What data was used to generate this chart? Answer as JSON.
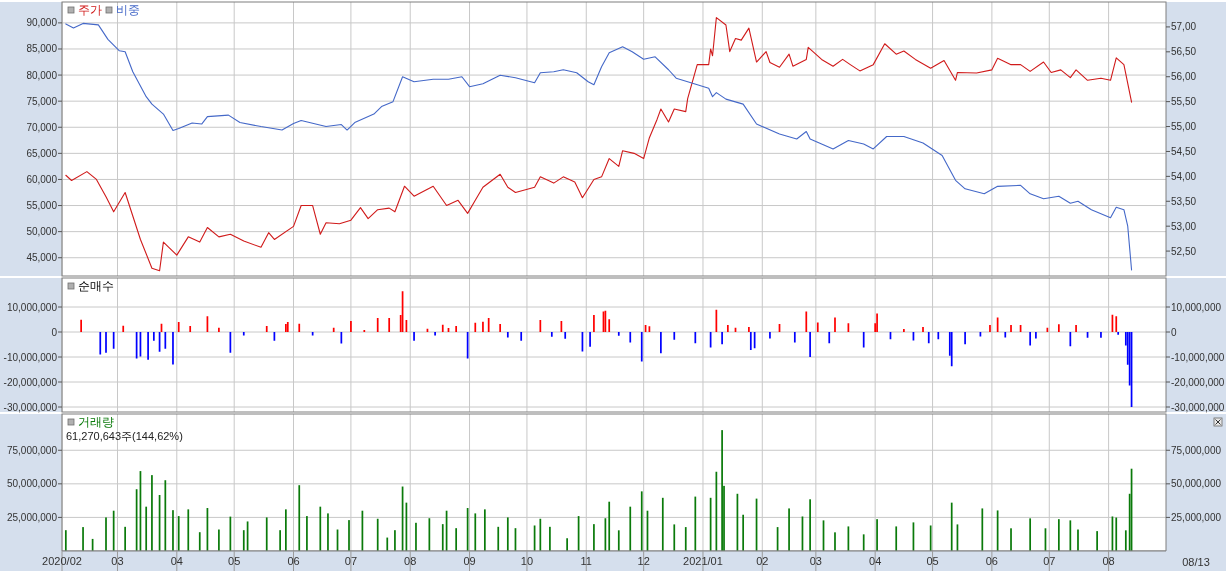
{
  "chart_data": [
    {
      "type": "line",
      "legend": "top left",
      "grid": true,
      "tick_labels": "y",
      "xlim": [
        "2020-02-01",
        "2021-08-31"
      ],
      "xticks": [
        {
          "value": "2020-02-01",
          "label": null
        },
        {
          "value": "2020-03-01",
          "label": null
        },
        {
          "value": "2020-04-01",
          "label": null
        },
        {
          "value": "2020-05-01",
          "label": null
        },
        {
          "value": "2020-06-01",
          "label": null
        },
        {
          "value": "2020-07-01",
          "label": null
        },
        {
          "value": "2020-08-01",
          "label": null
        },
        {
          "value": "2020-09-01",
          "label": null
        },
        {
          "value": "2020-10-01",
          "label": null
        },
        {
          "value": "2020-11-01",
          "label": null
        },
        {
          "value": "2020-12-01",
          "label": null
        },
        {
          "value": "2021-01-01",
          "label": null
        },
        {
          "value": "2021-02-01",
          "label": null
        },
        {
          "value": "2021-03-01",
          "label": null
        },
        {
          "value": "2021-04-01",
          "label": null
        },
        {
          "value": "2021-05-01",
          "label": null
        },
        {
          "value": "2021-06-01",
          "label": null
        },
        {
          "value": "2021-07-01",
          "label": null
        },
        {
          "value": "2021-08-01",
          "label": null
        }
      ],
      "ylim": [
        41500,
        94000
      ],
      "yticks": [
        {
          "value": 45000,
          "label": "45,000"
        },
        {
          "value": 50000,
          "label": "50,000"
        },
        {
          "value": 55000,
          "label": "55,000"
        },
        {
          "value": 60000,
          "label": "60,000"
        },
        {
          "value": 65000,
          "label": "65,000"
        },
        {
          "value": 70000,
          "label": "70,000"
        },
        {
          "value": 75000,
          "label": "75,000"
        },
        {
          "value": 80000,
          "label": "80,000"
        },
        {
          "value": 85000,
          "label": "85,000"
        },
        {
          "value": 90000,
          "label": "90,000"
        }
      ],
      "y2lim": [
        52,
        57.5
      ],
      "y2ticks": [
        {
          "value": 52.5,
          "label": "52,50"
        },
        {
          "value": 53,
          "label": "53,00"
        },
        {
          "value": 53.5,
          "label": "53,50"
        },
        {
          "value": 54,
          "label": "54,00"
        },
        {
          "value": 54.5,
          "label": "54,50"
        },
        {
          "value": 55,
          "label": "55,00"
        },
        {
          "value": 55.5,
          "label": "55,50"
        },
        {
          "value": 56,
          "label": "56,00"
        },
        {
          "value": 56.5,
          "label": "56,50"
        },
        {
          "value": 57,
          "label": "57,00"
        }
      ],
      "series": [
        {
          "name": "주가",
          "color": "#d01a1a",
          "x": [
            "2020-02-03",
            "2020-02-06",
            "2020-02-14",
            "2020-02-19",
            "2020-02-24",
            "2020-02-28",
            "2020-03-05",
            "2020-03-09",
            "2020-03-13",
            "2020-03-19",
            "2020-03-23",
            "2020-03-25",
            "2020-04-01",
            "2020-04-07",
            "2020-04-13",
            "2020-04-17",
            "2020-04-23",
            "2020-04-29",
            "2020-05-06",
            "2020-05-15",
            "2020-05-19",
            "2020-05-22",
            "2020-06-01",
            "2020-06-05",
            "2020-06-11",
            "2020-06-15",
            "2020-06-18",
            "2020-06-25",
            "2020-07-01",
            "2020-07-06",
            "2020-07-10",
            "2020-07-15",
            "2020-07-21",
            "2020-07-24",
            "2020-07-29",
            "2020-08-03",
            "2020-08-13",
            "2020-08-20",
            "2020-08-26",
            "2020-08-31",
            "2020-09-04",
            "2020-09-08",
            "2020-09-17",
            "2020-09-21",
            "2020-09-25",
            "2020-10-05",
            "2020-10-08",
            "2020-10-15",
            "2020-10-20",
            "2020-10-26",
            "2020-10-30",
            "2020-11-05",
            "2020-11-09",
            "2020-11-13",
            "2020-11-18",
            "2020-11-20",
            "2020-11-26",
            "2020-12-01",
            "2020-12-04",
            "2020-12-08",
            "2020-12-10",
            "2020-12-14",
            "2020-12-17",
            "2020-12-23",
            "2020-12-24",
            "2020-12-29",
            "2021-01-04",
            "2021-01-05",
            "2021-01-06",
            "2021-01-08",
            "2021-01-13",
            "2021-01-15",
            "2021-01-18",
            "2021-01-21",
            "2021-01-25",
            "2021-01-29",
            "2021-02-03",
            "2021-02-05",
            "2021-02-10",
            "2021-02-15",
            "2021-02-17",
            "2021-02-24",
            "2021-02-25",
            "2021-03-04",
            "2021-03-10",
            "2021-03-15",
            "2021-03-19",
            "2021-03-24",
            "2021-03-31",
            "2021-04-06",
            "2021-04-12",
            "2021-04-16",
            "2021-04-22",
            "2021-04-30",
            "2021-05-07",
            "2021-05-13",
            "2021-05-14",
            "2021-05-24",
            "2021-06-01",
            "2021-06-04",
            "2021-06-11",
            "2021-06-16",
            "2021-06-21",
            "2021-06-28",
            "2021-07-02",
            "2021-07-07",
            "2021-07-12",
            "2021-07-15",
            "2021-07-21",
            "2021-07-28",
            "2021-08-02",
            "2021-08-05",
            "2021-08-09",
            "2021-08-13"
          ],
          "values": [
            60800,
            59800,
            61500,
            60000,
            56700,
            53800,
            57500,
            53000,
            48500,
            43000,
            42500,
            48000,
            45500,
            49000,
            48000,
            50800,
            49000,
            49500,
            48200,
            47000,
            49800,
            48500,
            51000,
            55000,
            55000,
            49500,
            51700,
            51500,
            52200,
            54600,
            52500,
            54200,
            54500,
            53800,
            58700,
            56800,
            58700,
            55000,
            56000,
            53500,
            56000,
            58500,
            61000,
            58500,
            57500,
            58500,
            60500,
            59300,
            60500,
            59500,
            56500,
            60000,
            60500,
            64000,
            62500,
            65500,
            65000,
            64000,
            68000,
            71500,
            73500,
            71000,
            73500,
            73000,
            75500,
            82000,
            82000,
            85000,
            83700,
            91000,
            89600,
            84500,
            87000,
            86700,
            89000,
            82500,
            84500,
            82400,
            81500,
            84000,
            81700,
            83000,
            85300,
            83000,
            81700,
            83000,
            82000,
            80800,
            82000,
            86000,
            84000,
            84600,
            83000,
            81300,
            82800,
            79000,
            80500,
            80400,
            81000,
            83200,
            82000,
            82000,
            80700,
            82500,
            80500,
            81000,
            79500,
            81000,
            79000,
            79400,
            79000,
            83300,
            82000,
            74800
          ]
        },
        {
          "name": "비중",
          "color": "#4468c8",
          "axis": "y2",
          "x": [
            "2020-02-03",
            "2020-02-07",
            "2020-02-12",
            "2020-02-20",
            "2020-02-25",
            "2020-03-02",
            "2020-03-05",
            "2020-03-09",
            "2020-03-16",
            "2020-03-19",
            "2020-03-25",
            "2020-03-30",
            "2020-04-02",
            "2020-04-09",
            "2020-04-14",
            "2020-04-17",
            "2020-04-28",
            "2020-05-04",
            "2020-05-15",
            "2020-05-26",
            "2020-06-01",
            "2020-06-05",
            "2020-06-18",
            "2020-06-26",
            "2020-06-29",
            "2020-07-03",
            "2020-07-13",
            "2020-07-17",
            "2020-07-23",
            "2020-07-28",
            "2020-08-03",
            "2020-08-13",
            "2020-08-21",
            "2020-08-28",
            "2020-09-01",
            "2020-09-08",
            "2020-09-17",
            "2020-09-25",
            "2020-10-05",
            "2020-10-08",
            "2020-10-15",
            "2020-10-20",
            "2020-10-27",
            "2020-11-02",
            "2020-11-05",
            "2020-11-09",
            "2020-11-13",
            "2020-11-20",
            "2020-11-25",
            "2020-12-01",
            "2020-12-07",
            "2020-12-14",
            "2020-12-18",
            "2020-12-24",
            "2021-01-04",
            "2021-01-06",
            "2021-01-08",
            "2021-01-13",
            "2021-01-22",
            "2021-01-29",
            "2021-02-10",
            "2021-02-19",
            "2021-02-24",
            "2021-02-26",
            "2021-03-10",
            "2021-03-18",
            "2021-03-26",
            "2021-03-31",
            "2021-04-07",
            "2021-04-16",
            "2021-04-26",
            "2021-05-06",
            "2021-05-13",
            "2021-05-18",
            "2021-05-28",
            "2021-06-04",
            "2021-06-16",
            "2021-06-21",
            "2021-06-28",
            "2021-07-06",
            "2021-07-12",
            "2021-07-16",
            "2021-07-23",
            "2021-08-02",
            "2021-08-05",
            "2021-08-09",
            "2021-08-11",
            "2021-08-13"
          ],
          "values": [
            57.06,
            56.98,
            57.07,
            57.04,
            56.75,
            56.52,
            56.5,
            56.1,
            55.6,
            55.45,
            55.25,
            54.92,
            54.96,
            55.07,
            55.05,
            55.2,
            55.23,
            55.08,
            55.0,
            54.93,
            55.06,
            55.12,
            55.0,
            55.04,
            54.93,
            55.08,
            55.25,
            55.4,
            55.5,
            56.0,
            55.9,
            55.95,
            55.95,
            56.0,
            55.8,
            55.86,
            56.03,
            55.98,
            55.88,
            56.08,
            56.1,
            56.14,
            56.08,
            55.9,
            55.84,
            56.2,
            56.48,
            56.6,
            56.5,
            56.35,
            56.4,
            56.14,
            55.97,
            55.9,
            55.77,
            55.6,
            55.68,
            55.55,
            55.45,
            55.05,
            54.85,
            54.75,
            54.9,
            54.75,
            54.55,
            54.72,
            54.65,
            54.55,
            54.8,
            54.8,
            54.67,
            54.42,
            53.92,
            53.75,
            53.65,
            53.8,
            53.82,
            53.65,
            53.55,
            53.6,
            53.46,
            53.5,
            53.33,
            53.17,
            53.38,
            53.33,
            53.0,
            52.12
          ]
        }
      ]
    },
    {
      "type": "bar",
      "legend": "top left",
      "grid": true,
      "tick_labels": "y",
      "xlim": [
        "2020-02-01",
        "2021-08-31"
      ],
      "xticks": [
        {
          "value": "2020-02-01",
          "label": null
        },
        {
          "value": "2020-03-01",
          "label": null
        },
        {
          "value": "2020-04-01",
          "label": null
        },
        {
          "value": "2020-05-01",
          "label": null
        },
        {
          "value": "2020-06-01",
          "label": null
        },
        {
          "value": "2020-07-01",
          "label": null
        },
        {
          "value": "2020-08-01",
          "label": null
        },
        {
          "value": "2020-09-01",
          "label": null
        },
        {
          "value": "2020-10-01",
          "label": null
        },
        {
          "value": "2020-11-01",
          "label": null
        },
        {
          "value": "2020-12-01",
          "label": null
        },
        {
          "value": "2021-01-01",
          "label": null
        },
        {
          "value": "2021-02-01",
          "label": null
        },
        {
          "value": "2021-03-01",
          "label": null
        },
        {
          "value": "2021-04-01",
          "label": null
        },
        {
          "value": "2021-05-01",
          "label": null
        },
        {
          "value": "2021-06-01",
          "label": null
        },
        {
          "value": "2021-07-01",
          "label": null
        },
        {
          "value": "2021-08-01",
          "label": null
        }
      ],
      "ylim": [
        -32000000,
        21600000
      ],
      "yticks": [
        {
          "value": -30000000,
          "label": "-30,000,000"
        },
        {
          "value": -20000000,
          "label": "-20,000,000"
        },
        {
          "value": -10000000,
          "label": "-10,000,000"
        },
        0,
        {
          "value": 10000000,
          "label": "10,000,000"
        }
      ],
      "y2lim": [
        -32000000,
        21600000
      ],
      "y2ticks": [
        {
          "value": -30000000,
          "label": "-30,000,000"
        },
        {
          "value": -20000000,
          "label": "-20,000,000"
        },
        {
          "value": -10000000,
          "label": "-10,000,000"
        },
        0,
        {
          "value": 10000000,
          "label": "10,000,000"
        }
      ],
      "series": [
        {
          "name": "순매수",
          "x": [
            "2020-02-11",
            "2020-02-21",
            "2020-02-24",
            "2020-02-28",
            "2020-03-04",
            "2020-03-11",
            "2020-03-13",
            "2020-03-17",
            "2020-03-20",
            "2020-03-23",
            "2020-03-24",
            "2020-03-26",
            "2020-03-30",
            "2020-04-02",
            "2020-04-08",
            "2020-04-17",
            "2020-04-23",
            "2020-04-29",
            "2020-05-06",
            "2020-05-18",
            "2020-05-22",
            "2020-05-28",
            "2020-05-29",
            "2020-06-04",
            "2020-06-11",
            "2020-06-22",
            "2020-06-26",
            "2020-07-01",
            "2020-07-08",
            "2020-07-15",
            "2020-07-21",
            "2020-07-27",
            "2020-07-28",
            "2020-07-30",
            "2020-08-03",
            "2020-08-10",
            "2020-08-14",
            "2020-08-18",
            "2020-08-21",
            "2020-08-25",
            "2020-08-31",
            "2020-09-04",
            "2020-09-08",
            "2020-09-11",
            "2020-09-17",
            "2020-09-21",
            "2020-09-28",
            "2020-10-08",
            "2020-10-14",
            "2020-10-19",
            "2020-10-21",
            "2020-10-30",
            "2020-11-03",
            "2020-11-05",
            "2020-11-10",
            "2020-11-11",
            "2020-11-13",
            "2020-11-18",
            "2020-11-24",
            "2020-11-30",
            "2020-12-02",
            "2020-12-04",
            "2020-12-10",
            "2020-12-17",
            "2020-12-28",
            "2021-01-05",
            "2021-01-08",
            "2021-01-11",
            "2021-01-14",
            "2021-01-18",
            "2021-01-25",
            "2021-01-26",
            "2021-01-28",
            "2021-02-05",
            "2021-02-10",
            "2021-02-18",
            "2021-02-24",
            "2021-02-26",
            "2021-03-02",
            "2021-03-08",
            "2021-03-11",
            "2021-03-18",
            "2021-03-26",
            "2021-04-01",
            "2021-04-02",
            "2021-04-09",
            "2021-04-16",
            "2021-04-21",
            "2021-04-26",
            "2021-04-29",
            "2021-05-04",
            "2021-05-10",
            "2021-05-11",
            "2021-05-18",
            "2021-05-26",
            "2021-05-31",
            "2021-06-04",
            "2021-06-08",
            "2021-06-11",
            "2021-06-16",
            "2021-06-21",
            "2021-06-24",
            "2021-06-30",
            "2021-07-06",
            "2021-07-12",
            "2021-07-15",
            "2021-07-21",
            "2021-07-28",
            "2021-08-03",
            "2021-08-05",
            "2021-08-06",
            "2021-08-10",
            "2021-08-11",
            "2021-08-12",
            "2021-08-13"
          ],
          "values": [
            4900000,
            -9000000,
            -8300000,
            -6700000,
            2500000,
            -10600000,
            -9800000,
            -11100000,
            -3500000,
            -7900000,
            3300000,
            -6700000,
            -13000000,
            4000000,
            2400000,
            6300000,
            1700000,
            -8300000,
            -1400000,
            2400000,
            -3500000,
            3200000,
            4000000,
            3300000,
            -1400000,
            1700000,
            -4600000,
            4400000,
            800000,
            5600000,
            5600000,
            6800000,
            16300000,
            4800000,
            -3500000,
            1300000,
            -1400000,
            2900000,
            1600000,
            2400000,
            -10600000,
            3700000,
            4100000,
            5600000,
            3200000,
            -2200000,
            -3500000,
            4800000,
            -1900000,
            4400000,
            -2700000,
            -7800000,
            -5900000,
            6800000,
            8200000,
            8500000,
            5100000,
            -1500000,
            -4200000,
            -11800000,
            2800000,
            2300000,
            -8500000,
            -3100000,
            -4500000,
            -6200000,
            8900000,
            -4900000,
            2800000,
            1700000,
            2000000,
            -7200000,
            -6500000,
            -2600000,
            3200000,
            -4200000,
            8200000,
            -10000000,
            3800000,
            -4500000,
            5800000,
            3500000,
            -6200000,
            3500000,
            7400000,
            -2900000,
            1200000,
            -3400000,
            2000000,
            -4500000,
            -2900000,
            -9500000,
            -13700000,
            -4900000,
            -1800000,
            2800000,
            5800000,
            -2200000,
            2800000,
            2800000,
            -5400000,
            -2600000,
            1700000,
            3100000,
            -5700000,
            2800000,
            -2300000,
            -2300000,
            6900000,
            6300000,
            -1100000,
            -5400000,
            -13100000,
            -21400000,
            -30000000
          ],
          "colors": [
            "#ff0000",
            "#0000ff",
            "#0000ff",
            "#0000ff",
            "#ff0000",
            "#0000ff",
            "#0000ff",
            "#0000ff",
            "#0000ff",
            "#0000ff",
            "#ff0000",
            "#0000ff",
            "#0000ff",
            "#ff0000",
            "#ff0000",
            "#ff0000",
            "#ff0000",
            "#0000ff",
            "#0000ff",
            "#ff0000",
            "#0000ff",
            "#ff0000",
            "#ff0000",
            "#ff0000",
            "#0000ff",
            "#ff0000",
            "#0000ff",
            "#ff0000",
            "#ff0000",
            "#ff0000",
            "#ff0000",
            "#ff0000",
            "#ff0000",
            "#ff0000",
            "#0000ff",
            "#ff0000",
            "#0000ff",
            "#ff0000",
            "#ff0000",
            "#ff0000",
            "#0000ff",
            "#ff0000",
            "#ff0000",
            "#ff0000",
            "#ff0000",
            "#0000ff",
            "#0000ff",
            "#ff0000",
            "#0000ff",
            "#ff0000",
            "#0000ff",
            "#0000ff",
            "#0000ff",
            "#ff0000",
            "#ff0000",
            "#ff0000",
            "#ff0000",
            "#0000ff",
            "#0000ff",
            "#0000ff",
            "#ff0000",
            "#ff0000",
            "#0000ff",
            "#0000ff",
            "#0000ff",
            "#0000ff",
            "#ff0000",
            "#0000ff",
            "#ff0000",
            "#ff0000",
            "#ff0000",
            "#0000ff",
            "#0000ff",
            "#0000ff",
            "#ff0000",
            "#0000ff",
            "#ff0000",
            "#0000ff",
            "#ff0000",
            "#0000ff",
            "#ff0000",
            "#ff0000",
            "#0000ff",
            "#ff0000",
            "#ff0000",
            "#0000ff",
            "#ff0000",
            "#0000ff",
            "#ff0000",
            "#0000ff",
            "#0000ff",
            "#0000ff",
            "#0000ff",
            "#0000ff",
            "#0000ff",
            "#ff0000",
            "#ff0000",
            "#0000ff",
            "#ff0000",
            "#ff0000",
            "#0000ff",
            "#0000ff",
            "#ff0000",
            "#ff0000",
            "#0000ff",
            "#ff0000",
            "#0000ff",
            "#0000ff",
            "#ff0000",
            "#ff0000",
            "#0000ff",
            "#0000ff",
            "#0000ff",
            "#0000ff",
            "#0000ff"
          ]
        }
      ]
    },
    {
      "type": "bar",
      "legend": "top left",
      "grid": true,
      "xlim": [
        "2020-02-01",
        "2021-08-31"
      ],
      "xticks": [
        {
          "value": "2020-02-01",
          "label": "2020/02"
        },
        {
          "value": "2020-03-01",
          "label": "03"
        },
        {
          "value": "2020-04-01",
          "label": "04"
        },
        {
          "value": "2020-05-01",
          "label": "05"
        },
        {
          "value": "2020-06-01",
          "label": "06"
        },
        {
          "value": "2020-07-01",
          "label": "07"
        },
        {
          "value": "2020-08-01",
          "label": "08"
        },
        {
          "value": "2020-09-01",
          "label": "09"
        },
        {
          "value": "2020-10-01",
          "label": "10"
        },
        {
          "value": "2020-11-01",
          "label": "11"
        },
        {
          "value": "2020-12-01",
          "label": "12"
        },
        {
          "value": "2021-01-01",
          "label": "2021/01"
        },
        {
          "value": "2021-02-01",
          "label": "02"
        },
        {
          "value": "2021-03-01",
          "label": "03"
        },
        {
          "value": "2021-04-01",
          "label": "04"
        },
        {
          "value": "2021-05-01",
          "label": "05"
        },
        {
          "value": "2021-06-01",
          "label": "06"
        },
        {
          "value": "2021-07-01",
          "label": "07"
        },
        {
          "value": "2021-08-01",
          "label": "08"
        }
      ],
      "ylim": [
        0,
        102000000
      ],
      "yticks": [
        {
          "value": 25000000,
          "label": "25,000,000"
        },
        {
          "value": 50000000,
          "label": "50,000,000"
        },
        {
          "value": 75000000,
          "label": "75,000,000"
        }
      ],
      "y2lim": [
        0,
        102000000
      ],
      "y2ticks": [
        {
          "value": 25000000,
          "label": "25,000,000"
        },
        {
          "value": 50000000,
          "label": "50,000,000"
        },
        {
          "value": 75000000,
          "label": "75,000,000"
        }
      ],
      "annotations": [
        "61,270,643주(144,62%)",
        "08/13"
      ],
      "series": [
        {
          "name": "거래량",
          "color": "#0a7a0a",
          "x": [
            "2020-02-03",
            "2020-02-12",
            "2020-02-17",
            "2020-02-24",
            "2020-02-28",
            "2020-03-05",
            "2020-03-11",
            "2020-03-13",
            "2020-03-16",
            "2020-03-19",
            "2020-03-23",
            "2020-03-26",
            "2020-03-30",
            "2020-04-02",
            "2020-04-07",
            "2020-04-13",
            "2020-04-17",
            "2020-04-23",
            "2020-04-29",
            "2020-05-06",
            "2020-05-08",
            "2020-05-18",
            "2020-05-25",
            "2020-05-28",
            "2020-06-04",
            "2020-06-08",
            "2020-06-15",
            "2020-06-19",
            "2020-06-24",
            "2020-06-30",
            "2020-07-07",
            "2020-07-15",
            "2020-07-20",
            "2020-07-24",
            "2020-07-28",
            "2020-07-30",
            "2020-08-04",
            "2020-08-11",
            "2020-08-18",
            "2020-08-20",
            "2020-08-25",
            "2020-08-31",
            "2020-09-04",
            "2020-09-09",
            "2020-09-16",
            "2020-09-21",
            "2020-09-25",
            "2020-10-05",
            "2020-10-08",
            "2020-10-13",
            "2020-10-22",
            "2020-10-28",
            "2020-11-05",
            "2020-11-11",
            "2020-11-13",
            "2020-11-18",
            "2020-11-24",
            "2020-11-30",
            "2020-12-03",
            "2020-12-11",
            "2020-12-17",
            "2020-12-23",
            "2020-12-28",
            "2021-01-05",
            "2021-01-08",
            "2021-01-11",
            "2021-01-12",
            "2021-01-19",
            "2021-01-22",
            "2021-01-29",
            "2021-02-09",
            "2021-02-15",
            "2021-02-22",
            "2021-02-26",
            "2021-03-05",
            "2021-03-11",
            "2021-03-18",
            "2021-03-26",
            "2021-04-02",
            "2021-04-12",
            "2021-04-21",
            "2021-04-30",
            "2021-05-11",
            "2021-05-14",
            "2021-05-27",
            "2021-06-04",
            "2021-06-11",
            "2021-06-21",
            "2021-06-29",
            "2021-07-06",
            "2021-07-12",
            "2021-07-16",
            "2021-07-26",
            "2021-08-03",
            "2021-08-05",
            "2021-08-10",
            "2021-08-12",
            "2021-08-13"
          ],
          "values": [
            15500000,
            17800000,
            9000000,
            25000000,
            30000000,
            18000000,
            46000000,
            59500000,
            33000000,
            56500000,
            41700000,
            52700000,
            30400000,
            26000000,
            31000000,
            14000000,
            32000000,
            16000000,
            25600000,
            15500000,
            22000000,
            25000000,
            15500000,
            31000000,
            49000000,
            26000000,
            33000000,
            28000000,
            16000000,
            23000000,
            30000000,
            24000000,
            10000000,
            15500000,
            48000000,
            36000000,
            21000000,
            24400000,
            20000000,
            30000000,
            17000000,
            32000000,
            28000000,
            31000000,
            18000000,
            25000000,
            17000000,
            19000000,
            24000000,
            18000000,
            9500000,
            26000000,
            20000000,
            24400000,
            36700000,
            15400000,
            33000000,
            44400000,
            30000000,
            39600000,
            19800000,
            17800000,
            40500000,
            39600000,
            59000000,
            90000000,
            48500000,
            42600000,
            27000000,
            39000000,
            17800000,
            31700000,
            25700000,
            38500000,
            22800000,
            13900000,
            18300000,
            12400000,
            23700000,
            18300000,
            21300000,
            19000000,
            36000000,
            19800000,
            31700000,
            30200000,
            16900000,
            24300000,
            16900000,
            23700000,
            22800000,
            16000000,
            14800000,
            25700000,
            24900000,
            15400000,
            42600000,
            61270643
          ]
        }
      ]
    }
  ]
}
